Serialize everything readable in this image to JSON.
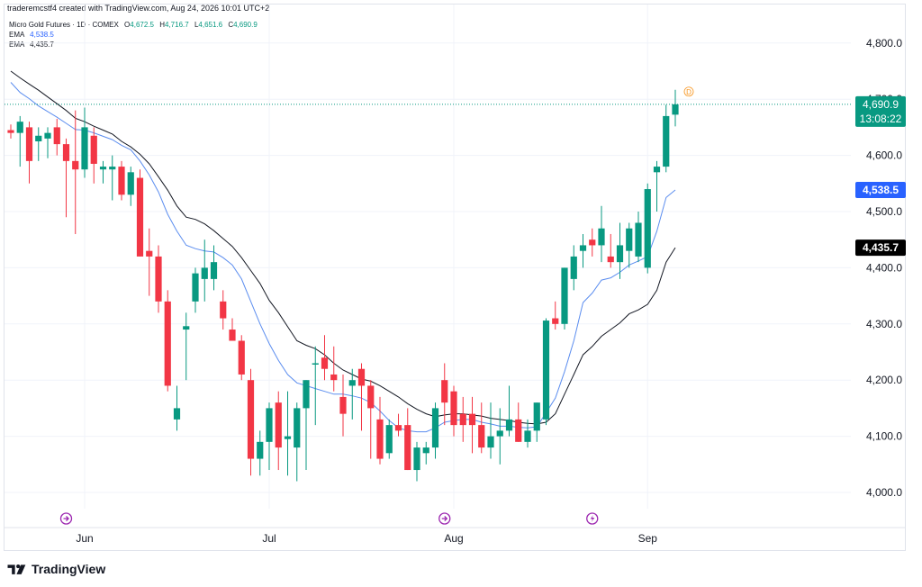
{
  "header": {
    "credit": "traderemcstf4 created with TradingView.com, Aug 24, 2026 10:01 UTC+2",
    "symbol": "Micro Gold Futures · 1D · COMEX",
    "o_label": "O",
    "o_value": "4,672.5",
    "h_label": "H",
    "h_value": "4,716.7",
    "l_label": "L",
    "l_value": "4,651.6",
    "c_label": "C",
    "c_value": "4,690.9",
    "ema1_label": "EMA",
    "ema1_value": "4,538.5",
    "ema2_label": "EMA",
    "ema2_value": "4,435.7"
  },
  "price_tags": {
    "last_price": "4,690.9",
    "countdown": "13:08:22",
    "ema1": "4,538.5",
    "ema2": "4,435.7"
  },
  "event_marker": "D",
  "footer": {
    "brand": "TradingView"
  },
  "colors": {
    "up": "#089981",
    "down": "#f23645",
    "ema_fast": "#5b8def",
    "ema_slow": "#131722",
    "ema_fast_tag": "#2962ff",
    "ema_slow_tag": "#000000",
    "marker": "#f7931a",
    "event_icon": "#9c27b0"
  },
  "chart_data": {
    "type": "candlestick",
    "title": "Micro Gold Futures · 1D · COMEX",
    "ylim": [
      3950,
      4850
    ],
    "yticks": [
      4000,
      4100,
      4200,
      4300,
      4400,
      4500,
      4600,
      4700,
      4800
    ],
    "ytick_labels": [
      "4,000.0",
      "4,100.0",
      "4,200.0",
      "4,300.0",
      "4,400.0",
      "4,500.0",
      "4,600.0",
      "4,700.0",
      "4,800.0"
    ],
    "xticks": [
      {
        "label": "Jun",
        "index": 8
      },
      {
        "label": "Jul",
        "index": 28
      },
      {
        "label": "Aug",
        "index": 48
      },
      {
        "label": "Sep",
        "index": 69
      }
    ],
    "event_icons": [
      {
        "index": 6,
        "icon": "calendar-event-icon"
      },
      {
        "index": 47,
        "icon": "calendar-event-icon"
      },
      {
        "index": 63,
        "icon": "flash-event-icon"
      }
    ],
    "candles": [
      [
        4645,
        4655,
        4630,
        4640
      ],
      [
        4640,
        4670,
        4580,
        4660
      ],
      [
        4650,
        4660,
        4550,
        4590
      ],
      [
        4625,
        4650,
        4590,
        4635
      ],
      [
        4630,
        4650,
        4595,
        4640
      ],
      [
        4650,
        4665,
        4600,
        4620
      ],
      [
        4620,
        4630,
        4490,
        4590
      ],
      [
        4590,
        4680,
        4460,
        4575
      ],
      [
        4575,
        4685,
        4560,
        4650
      ],
      [
        4635,
        4650,
        4550,
        4585
      ],
      [
        4575,
        4590,
        4550,
        4580
      ],
      [
        4575,
        4600,
        4520,
        4580
      ],
      [
        4580,
        4590,
        4520,
        4530
      ],
      [
        4530,
        4580,
        4510,
        4570
      ],
      [
        4560,
        4575,
        4420,
        4420
      ],
      [
        4430,
        4470,
        4350,
        4420
      ],
      [
        4420,
        4440,
        4320,
        4340
      ],
      [
        4340,
        4360,
        4180,
        4190
      ],
      [
        4130,
        4190,
        4110,
        4150
      ],
      [
        4290,
        4320,
        4200,
        4296
      ],
      [
        4340,
        4400,
        4320,
        4390
      ],
      [
        4380,
        4450,
        4340,
        4400
      ],
      [
        4380,
        4440,
        4360,
        4410
      ],
      [
        4340,
        4360,
        4290,
        4310
      ],
      [
        4290,
        4310,
        4270,
        4270
      ],
      [
        4270,
        4280,
        4200,
        4210
      ],
      [
        4200,
        4220,
        4030,
        4060
      ],
      [
        4060,
        4110,
        4030,
        4090
      ],
      [
        4090,
        4160,
        4040,
        4150
      ],
      [
        4160,
        4180,
        4040,
        4080
      ],
      [
        4095,
        4180,
        4030,
        4100
      ],
      [
        4080,
        4160,
        4020,
        4150
      ],
      [
        4150,
        4200,
        4040,
        4200
      ],
      [
        4230,
        4260,
        4120,
        4230
      ],
      [
        4240,
        4280,
        4200,
        4220
      ],
      [
        4210,
        4260,
        4180,
        4200
      ],
      [
        4170,
        4210,
        4100,
        4140
      ],
      [
        4190,
        4220,
        4130,
        4200
      ],
      [
        4220,
        4230,
        4110,
        4190
      ],
      [
        4190,
        4200,
        4060,
        4150
      ],
      [
        4130,
        4170,
        4050,
        4060
      ],
      [
        4070,
        4130,
        4060,
        4120
      ],
      [
        4120,
        4140,
        4100,
        4110
      ],
      [
        4120,
        4150,
        4040,
        4040
      ],
      [
        4040,
        4090,
        4020,
        4080
      ],
      [
        4070,
        4090,
        4050,
        4080
      ],
      [
        4080,
        4160,
        4060,
        4150
      ],
      [
        4200,
        4230,
        4120,
        4160
      ],
      [
        4180,
        4190,
        4100,
        4120
      ],
      [
        4140,
        4170,
        4090,
        4120
      ],
      [
        4140,
        4170,
        4070,
        4120
      ],
      [
        4120,
        4160,
        4070,
        4080
      ],
      [
        4080,
        4160,
        4060,
        4100
      ],
      [
        4100,
        4150,
        4050,
        4110
      ],
      [
        4110,
        4190,
        4100,
        4130
      ],
      [
        4130,
        4160,
        4090,
        4090
      ],
      [
        4090,
        4130,
        4080,
        4110
      ],
      [
        4110,
        4160,
        4090,
        4160
      ],
      [
        4130,
        4310,
        4120,
        4306
      ],
      [
        4310,
        4340,
        4290,
        4300
      ],
      [
        4300,
        4400,
        4290,
        4400
      ],
      [
        4380,
        4440,
        4360,
        4420
      ],
      [
        4430,
        4460,
        4400,
        4440
      ],
      [
        4450,
        4470,
        4420,
        4440
      ],
      [
        4440,
        4510,
        4410,
        4470
      ],
      [
        4420,
        4460,
        4400,
        4410
      ],
      [
        4410,
        4480,
        4380,
        4440
      ],
      [
        4430,
        4480,
        4400,
        4470
      ],
      [
        4420,
        4500,
        4410,
        4480
      ],
      [
        4400,
        4550,
        4390,
        4540
      ],
      [
        4570,
        4590,
        4500,
        4580
      ],
      [
        4580,
        4690,
        4570,
        4670
      ],
      [
        4672.5,
        4716.7,
        4651.6,
        4690.9
      ]
    ],
    "series": [
      {
        "name": "EMA",
        "last": 4538.5,
        "values": [
          4730,
          4712,
          4701,
          4688,
          4678,
          4668,
          4657,
          4646,
          4645,
          4640,
          4634,
          4628,
          4618,
          4610,
          4590,
          4565,
          4535,
          4495,
          4465,
          4440,
          4434,
          4430,
          4428,
          4418,
          4405,
          4380,
          4340,
          4300,
          4265,
          4235,
          4210,
          4195,
          4190,
          4185,
          4180,
          4175,
          4175,
          4172,
          4168,
          4160,
          4145,
          4128,
          4115,
          4110,
          4108,
          4108,
          4115,
          4125,
          4128,
          4130,
          4130,
          4125,
          4122,
          4118,
          4118,
          4116,
          4115,
          4117,
          4142,
          4168,
          4215,
          4270,
          4338,
          4355,
          4378,
          4382,
          4392,
          4405,
          4412,
          4420,
          4465,
          4525,
          4538.5
        ]
      },
      {
        "name": "EMA",
        "last": 4435.7,
        "values": [
          4750,
          4738,
          4727,
          4716,
          4704,
          4692,
          4680,
          4666,
          4660,
          4652,
          4645,
          4638,
          4625,
          4615,
          4602,
          4585,
          4562,
          4538,
          4510,
          4490,
          4486,
          4478,
          4466,
          4452,
          4438,
          4418,
          4395,
          4372,
          4342,
          4320,
          4295,
          4270,
          4262,
          4256,
          4245,
          4230,
          4218,
          4210,
          4202,
          4198,
          4190,
          4180,
          4170,
          4158,
          4148,
          4140,
          4135,
          4138,
          4140,
          4140,
          4138,
          4136,
          4132,
          4130,
          4128,
          4125,
          4123,
          4122,
          4125,
          4140,
          4175,
          4210,
          4245,
          4260,
          4278,
          4290,
          4302,
          4318,
          4325,
          4335,
          4360,
          4410,
          4435.7
        ]
      }
    ]
  }
}
